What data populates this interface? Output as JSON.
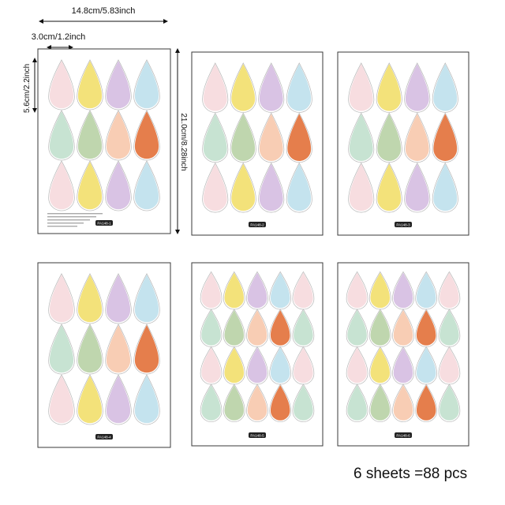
{
  "dimensions": {
    "sheet_width": "14.8cm/5.83inch",
    "drop_width": "3.0cm/1.2inch",
    "drop_height": "5.6cm/2.2inch",
    "sheet_height": "21.0cm/8.28inch"
  },
  "caption": "6 sheets =88 pcs",
  "colors": {
    "pink": "#f7dde0",
    "yellow": "#f3e27a",
    "lavender": "#d9c3e4",
    "blue": "#c4e3ee",
    "mint": "#c7e3d2",
    "sage": "#bfd6ae",
    "peach": "#f8cdb4",
    "orange": "#e57e4c"
  },
  "sheets": [
    {
      "code": "PA148-1",
      "grid": "large",
      "drops": [
        "pink",
        "yellow",
        "lavender",
        "blue",
        "mint",
        "sage",
        "peach",
        "orange",
        "pink",
        "yellow",
        "lavender",
        "blue"
      ]
    },
    {
      "code": "PA148-2",
      "grid": "large",
      "drops": [
        "pink",
        "yellow",
        "lavender",
        "blue",
        "mint",
        "sage",
        "peach",
        "orange",
        "pink",
        "yellow",
        "lavender",
        "blue"
      ]
    },
    {
      "code": "PA148-3",
      "grid": "large",
      "drops": [
        "pink",
        "yellow",
        "lavender",
        "blue",
        "mint",
        "sage",
        "peach",
        "orange",
        "pink",
        "yellow",
        "lavender",
        "blue"
      ]
    },
    {
      "code": "PA148-4",
      "grid": "large",
      "drops": [
        "pink",
        "yellow",
        "lavender",
        "blue",
        "mint",
        "sage",
        "peach",
        "orange",
        "pink",
        "yellow",
        "lavender",
        "blue"
      ]
    },
    {
      "code": "PA148-5",
      "grid": "small",
      "drops": [
        "pink",
        "yellow",
        "lavender",
        "blue",
        "pink",
        "mint",
        "sage",
        "peach",
        "orange",
        "mint",
        "pink",
        "yellow",
        "lavender",
        "blue",
        "pink",
        "mint",
        "sage",
        "peach",
        "orange",
        "mint"
      ]
    },
    {
      "code": "PA148-6",
      "grid": "small",
      "drops": [
        "pink",
        "yellow",
        "lavender",
        "blue",
        "pink",
        "mint",
        "sage",
        "peach",
        "orange",
        "mint",
        "pink",
        "yellow",
        "lavender",
        "blue",
        "pink",
        "mint",
        "sage",
        "peach",
        "orange",
        "mint"
      ]
    }
  ]
}
